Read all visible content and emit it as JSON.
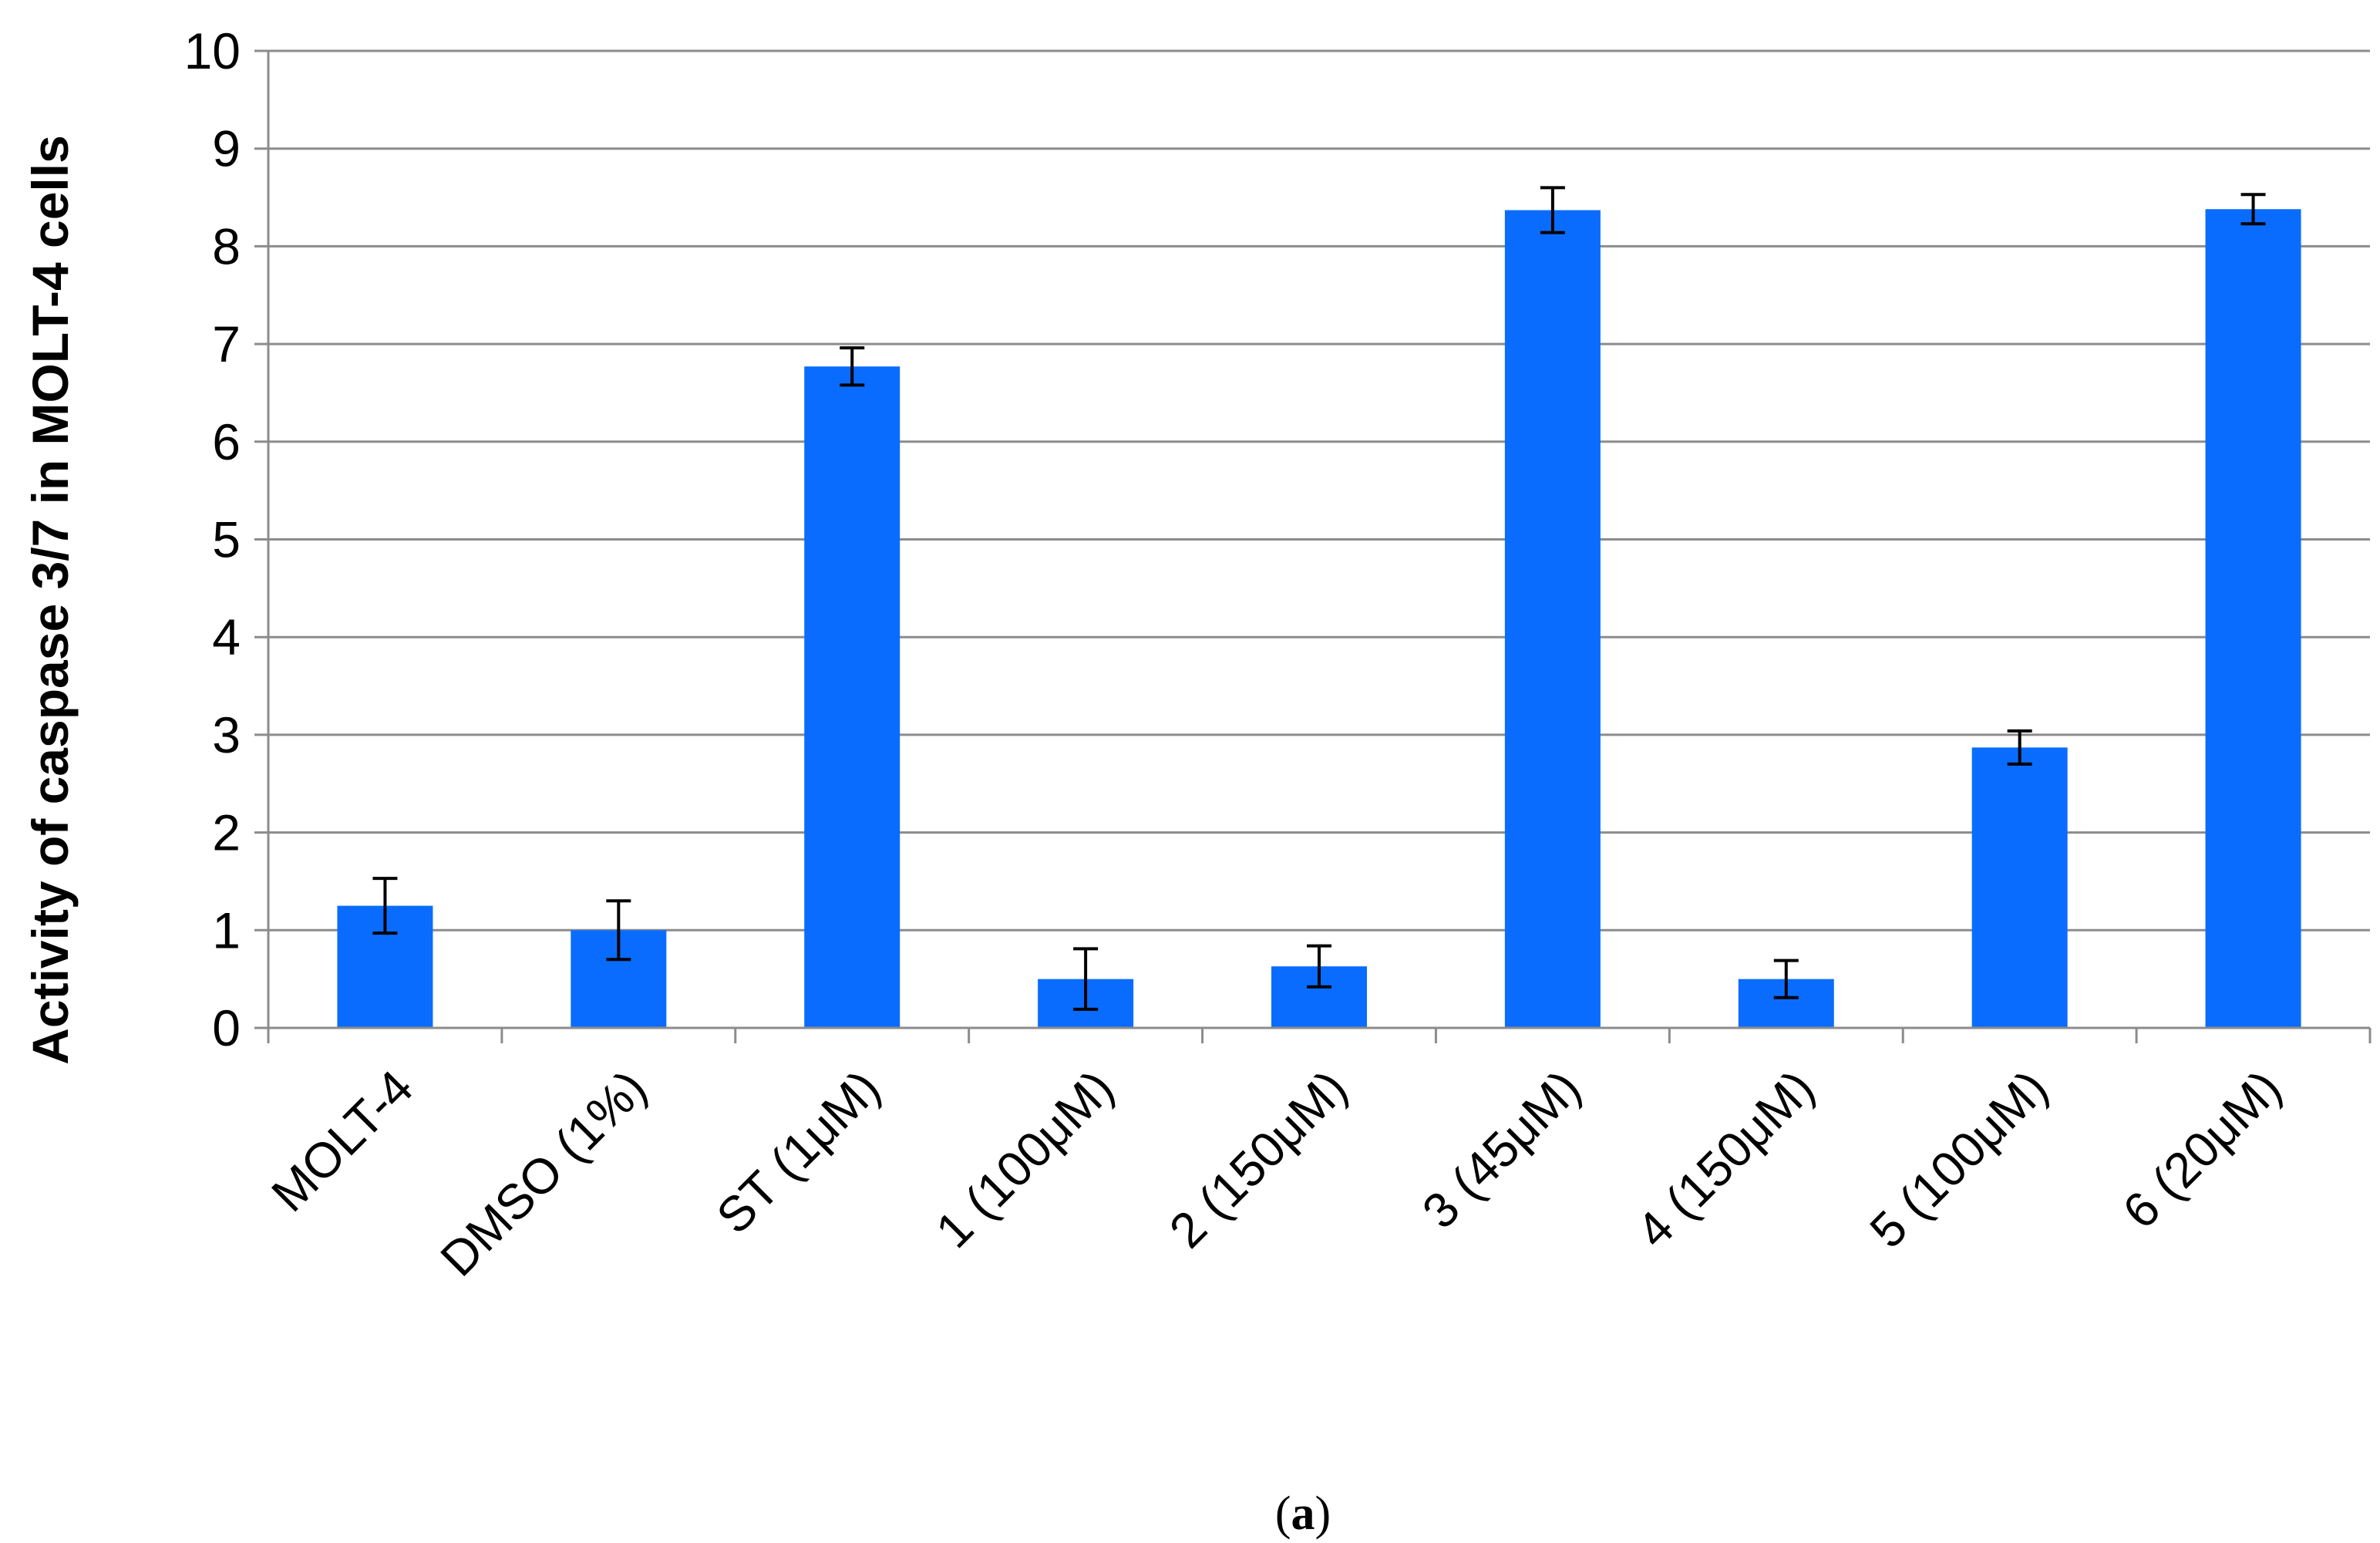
{
  "chart_data": {
    "type": "bar",
    "ylabel": "Activity of caspase 3/7 in MOLT-4 cells",
    "xlabel": "",
    "ylim": [
      0,
      10
    ],
    "yticks": [
      0,
      1,
      2,
      3,
      4,
      5,
      6,
      7,
      8,
      9,
      10
    ],
    "grid": "horizontal",
    "bar_color": "#0A6CFF",
    "categories": [
      "MOLT-4",
      "DMSO (1%)",
      "ST (1μM)",
      "1 (100μM)",
      "2 (150μM)",
      "3 (45μM)",
      "4 (150μM)",
      "5 (100μM)",
      "6 (20μM)"
    ],
    "values": [
      1.25,
      1.0,
      6.77,
      0.5,
      0.63,
      8.37,
      0.5,
      2.87,
      8.38
    ],
    "errors": [
      0.28,
      0.3,
      0.19,
      0.31,
      0.21,
      0.23,
      0.19,
      0.17,
      0.15
    ]
  },
  "caption": {
    "open": "(",
    "letter": "a",
    "close": ")"
  }
}
